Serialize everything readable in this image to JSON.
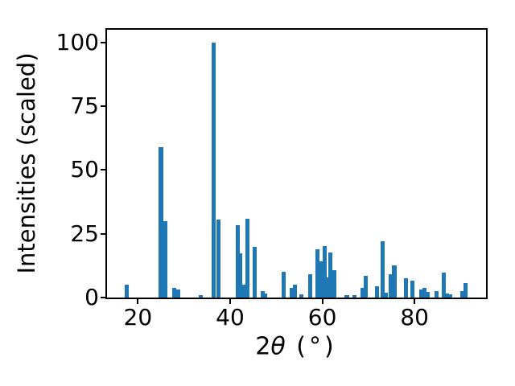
{
  "figure": {
    "xlabel_parts": {
      "prefix": "2",
      "theta": "θ",
      "suffix": " (°)"
    },
    "ylabel": "Intensities (scaled)"
  },
  "chart_data": {
    "type": "bar",
    "title": "",
    "xlabel": "2θ (°)",
    "ylabel": "Intensities (scaled)",
    "xlim": [
      13.3,
      95.5
    ],
    "ylim": [
      0,
      105
    ],
    "xticks": [
      20,
      40,
      60,
      80
    ],
    "yticks": [
      0,
      25,
      50,
      75,
      100
    ],
    "grid": false,
    "legend": "none",
    "bar_color": "#1f77b4",
    "bar_width_x": 0.9,
    "points": [
      [
        17.6,
        5.2
      ],
      [
        25.0,
        59
      ],
      [
        25.5,
        15
      ],
      [
        26.0,
        30
      ],
      [
        27.9,
        3.8
      ],
      [
        28.8,
        3.0
      ],
      [
        33.7,
        0.8
      ],
      [
        36.4,
        100
      ],
      [
        37.4,
        30.5
      ],
      [
        41.6,
        28.5
      ],
      [
        42.2,
        17.5
      ],
      [
        43.1,
        5.2
      ],
      [
        43.8,
        31
      ],
      [
        45.3,
        20
      ],
      [
        47.0,
        2.4
      ],
      [
        47.5,
        1.5
      ],
      [
        51.6,
        10
      ],
      [
        53.3,
        3.7
      ],
      [
        54.0,
        5.0
      ],
      [
        55.5,
        1.4
      ],
      [
        57.3,
        9.0
      ],
      [
        59.0,
        19
      ],
      [
        59.8,
        14.3
      ],
      [
        60.5,
        20.2
      ],
      [
        61.2,
        8.0
      ],
      [
        61.8,
        17.7
      ],
      [
        62.6,
        10.6
      ],
      [
        65.3,
        0.9
      ],
      [
        66.9,
        1.0
      ],
      [
        68.7,
        3.8
      ],
      [
        69.4,
        8.5
      ],
      [
        71.8,
        4.5
      ],
      [
        73.0,
        22
      ],
      [
        73.7,
        2.0
      ],
      [
        74.9,
        9.0
      ],
      [
        75.6,
        12.5
      ],
      [
        78.1,
        7.7
      ],
      [
        79.6,
        6.6
      ],
      [
        81.4,
        3.2
      ],
      [
        82.1,
        3.8
      ],
      [
        82.8,
        2.3
      ],
      [
        84.8,
        2.5
      ],
      [
        86.3,
        9.8
      ],
      [
        87.0,
        1.7
      ],
      [
        87.7,
        1.2
      ],
      [
        90.4,
        2.4
      ],
      [
        91.1,
        5.8
      ]
    ]
  }
}
